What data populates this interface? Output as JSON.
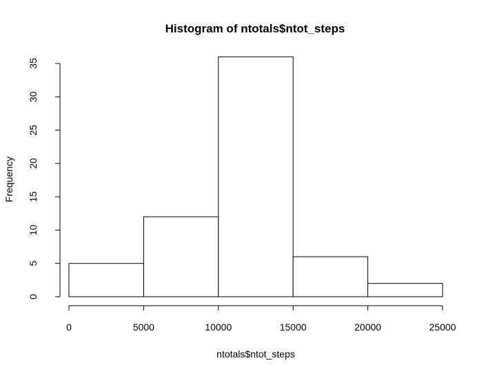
{
  "chart_data": {
    "type": "bar",
    "title": "Histogram of ntotals$ntot_steps",
    "xlabel": "ntotals$ntot_steps",
    "ylabel": "Frequency",
    "bins": [
      {
        "from": 0,
        "to": 5000,
        "count": 5
      },
      {
        "from": 5000,
        "to": 10000,
        "count": 12
      },
      {
        "from": 10000,
        "to": 15000,
        "count": 36
      },
      {
        "from": 15000,
        "to": 20000,
        "count": 6
      },
      {
        "from": 20000,
        "to": 25000,
        "count": 2
      }
    ],
    "x_ticks": [
      "0",
      "5000",
      "10000",
      "15000",
      "20000",
      "25000"
    ],
    "y_ticks": [
      "0",
      "5",
      "10",
      "15",
      "20",
      "25",
      "30",
      "35"
    ],
    "xlim": [
      0,
      25000
    ],
    "ylim": [
      0,
      35
    ],
    "grid": false,
    "legend": "none"
  }
}
